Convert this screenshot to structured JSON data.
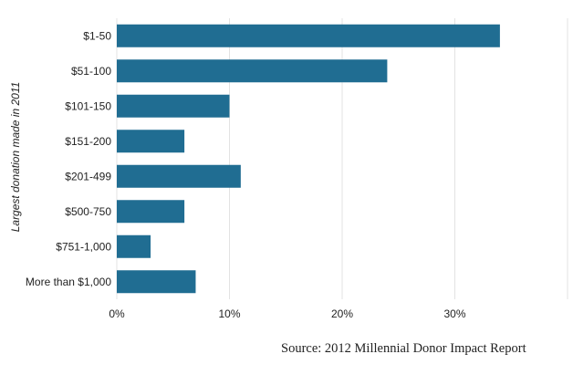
{
  "chart_data": {
    "type": "bar",
    "orientation": "horizontal",
    "categories": [
      "$1-50",
      "$51-100",
      "$101-150",
      "$151-200",
      "$201-499",
      "$500-750",
      "$751-1,000",
      "More than $1,000"
    ],
    "values": [
      34,
      24,
      10,
      6,
      11,
      6,
      3,
      7
    ],
    "ylabel": "Largest donation made in 2011",
    "xlabel": "",
    "xlim": [
      0,
      40
    ],
    "x_ticks": [
      0,
      10,
      20,
      30
    ],
    "x_tick_labels": [
      "0%",
      "10%",
      "20%",
      "30%"
    ],
    "unit": "%",
    "grid": "vertical",
    "legend": "none",
    "bar_color": "#206d92",
    "grid_color": "#e3e3e3"
  },
  "source": "Source: 2012 Millennial Donor Impact Report"
}
